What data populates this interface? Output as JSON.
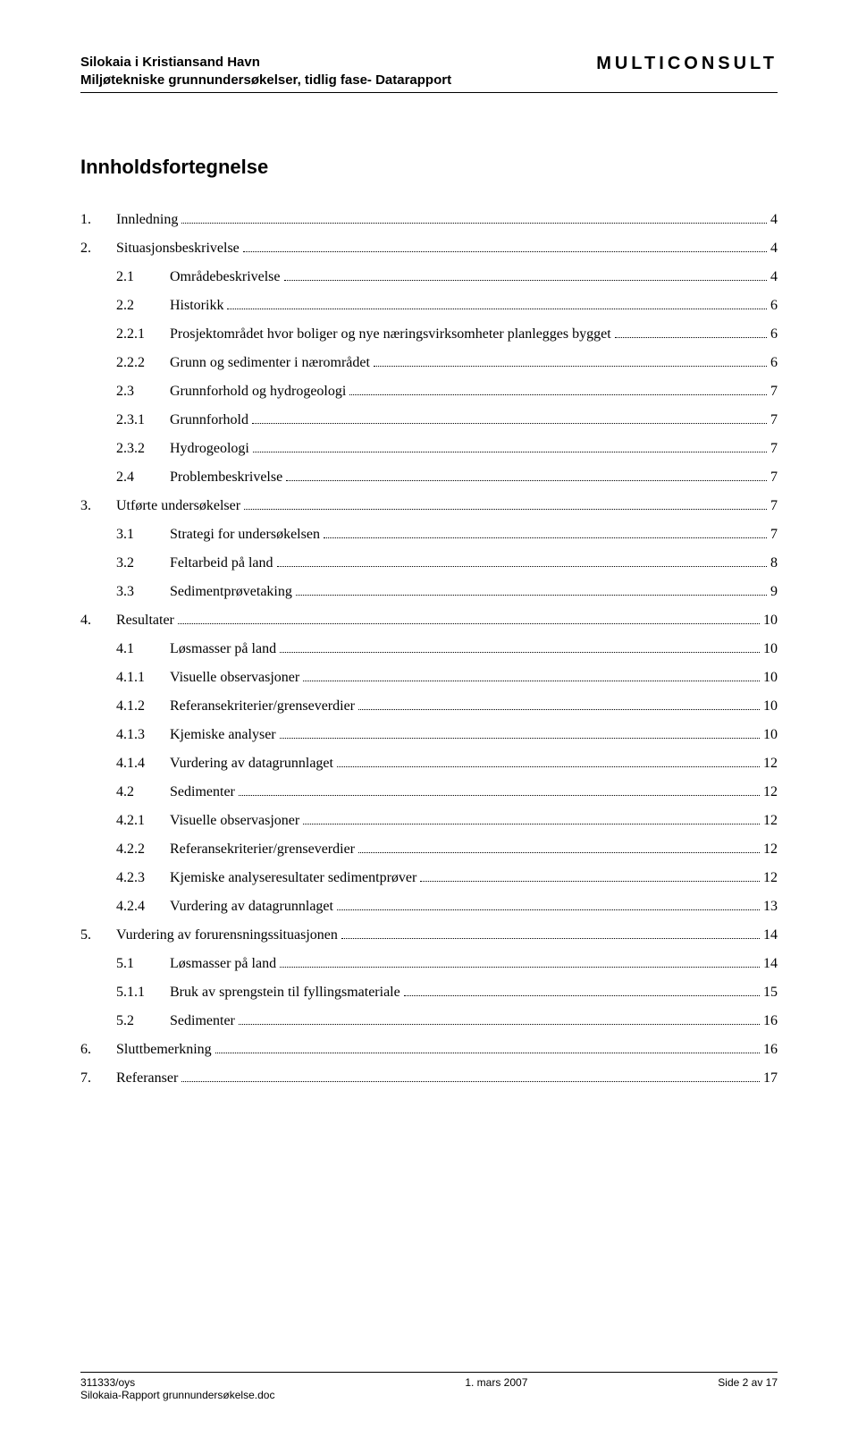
{
  "header": {
    "left_line1": "Silokaia i Kristiansand Havn",
    "left_line2": "Miljøtekniske grunnundersøkelser, tidlig fase- Datarapport",
    "right": "MULTICONSULT"
  },
  "toc_title": "Innholdsfortegnelse",
  "toc": [
    {
      "level": 1,
      "num": "1.",
      "label": "Innledning",
      "page": "4"
    },
    {
      "level": 1,
      "num": "2.",
      "label": "Situasjonsbeskrivelse",
      "page": "4"
    },
    {
      "level": 2,
      "num": "2.1",
      "label": "Områdebeskrivelse",
      "page": "4"
    },
    {
      "level": 2,
      "num": "2.2",
      "label": "Historikk",
      "page": "6"
    },
    {
      "level": 3,
      "num": "2.2.1",
      "label": "Prosjektområdet hvor boliger og nye næringsvirksomheter planlegges bygget",
      "page": "6"
    },
    {
      "level": 3,
      "num": "2.2.2",
      "label": "Grunn og sedimenter i nærområdet",
      "page": "6"
    },
    {
      "level": 2,
      "num": "2.3",
      "label": "Grunnforhold og hydrogeologi",
      "page": "7"
    },
    {
      "level": 3,
      "num": "2.3.1",
      "label": "Grunnforhold",
      "page": "7"
    },
    {
      "level": 3,
      "num": "2.3.2",
      "label": "Hydrogeologi",
      "page": "7"
    },
    {
      "level": 2,
      "num": "2.4",
      "label": "Problembeskrivelse",
      "page": "7"
    },
    {
      "level": 1,
      "num": "3.",
      "label": "Utførte undersøkelser",
      "page": "7"
    },
    {
      "level": 2,
      "num": "3.1",
      "label": "Strategi for undersøkelsen",
      "page": "7"
    },
    {
      "level": 2,
      "num": "3.2",
      "label": "Feltarbeid på land",
      "page": "8"
    },
    {
      "level": 2,
      "num": "3.3",
      "label": "Sedimentprøvetaking",
      "page": "9"
    },
    {
      "level": 1,
      "num": "4.",
      "label": "Resultater",
      "page": "10"
    },
    {
      "level": 2,
      "num": "4.1",
      "label": "Løsmasser på land",
      "page": "10"
    },
    {
      "level": 3,
      "num": "4.1.1",
      "label": "Visuelle observasjoner",
      "page": "10"
    },
    {
      "level": 3,
      "num": "4.1.2",
      "label": "Referansekriterier/grenseverdier",
      "page": "10"
    },
    {
      "level": 3,
      "num": "4.1.3",
      "label": "Kjemiske analyser",
      "page": "10"
    },
    {
      "level": 3,
      "num": "4.1.4",
      "label": "Vurdering av datagrunnlaget",
      "page": "12"
    },
    {
      "level": 2,
      "num": "4.2",
      "label": "Sedimenter",
      "page": "12"
    },
    {
      "level": 3,
      "num": "4.2.1",
      "label": "Visuelle observasjoner",
      "page": "12"
    },
    {
      "level": 3,
      "num": "4.2.2",
      "label": "Referansekriterier/grenseverdier",
      "page": "12"
    },
    {
      "level": 3,
      "num": "4.2.3",
      "label": "Kjemiske analyseresultater sedimentprøver",
      "page": "12"
    },
    {
      "level": 3,
      "num": "4.2.4",
      "label": "Vurdering av datagrunnlaget",
      "page": "13"
    },
    {
      "level": 1,
      "num": "5.",
      "label": "Vurdering av forurensningssituasjonen",
      "page": "14"
    },
    {
      "level": 2,
      "num": "5.1",
      "label": "Løsmasser på land",
      "page": "14"
    },
    {
      "level": 3,
      "num": "5.1.1",
      "label": "Bruk av sprengstein til fyllingsmateriale",
      "page": "15"
    },
    {
      "level": 2,
      "num": "5.2",
      "label": "Sedimenter",
      "page": "16"
    },
    {
      "level": 1,
      "num": "6.",
      "label": "Sluttbemerkning",
      "page": "16"
    },
    {
      "level": 1,
      "num": "7.",
      "label": "Referanser",
      "page": "17"
    }
  ],
  "footer": {
    "left_line1": "311333/oys",
    "left_line2": "Silokaia-Rapport grunnundersøkelse.doc",
    "center": "1. mars 2007",
    "right": "Side 2 av 17"
  }
}
